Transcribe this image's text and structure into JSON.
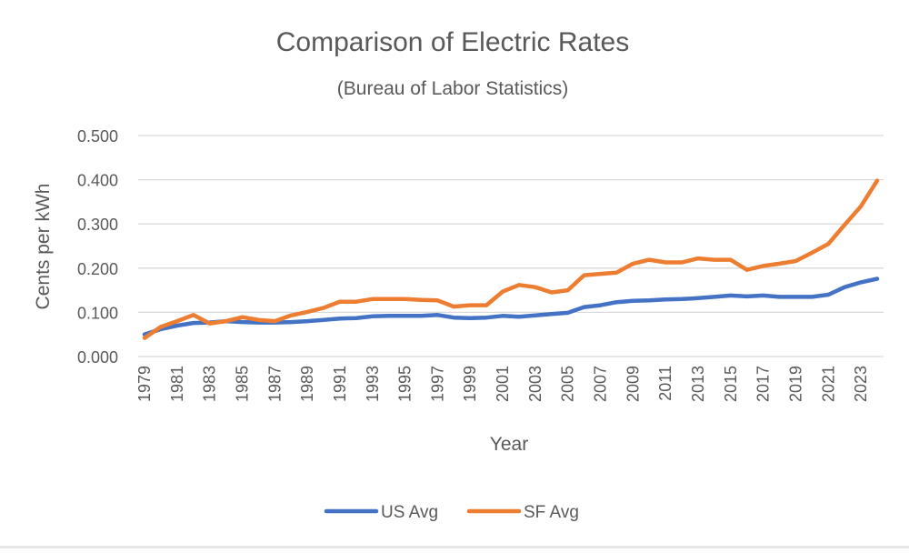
{
  "chart_data": {
    "type": "line",
    "title": "Comparison of Electric Rates",
    "subtitle": "(Bureau of Labor Statistics)",
    "xlabel": "Year",
    "ylabel": "Cents per kWh",
    "ylim": [
      0,
      0.5
    ],
    "yticks": [
      "0.000",
      "0.100",
      "0.200",
      "0.300",
      "0.400",
      "0.500"
    ],
    "xticks": [
      "1979",
      "1981",
      "1983",
      "1985",
      "1987",
      "1989",
      "1991",
      "1993",
      "1995",
      "1997",
      "1999",
      "2001",
      "2003",
      "2005",
      "2007",
      "2009",
      "2011",
      "2013",
      "2015",
      "2017",
      "2019",
      "2021",
      "2023"
    ],
    "x": [
      1979,
      1980,
      1981,
      1982,
      1983,
      1984,
      1985,
      1986,
      1987,
      1988,
      1989,
      1990,
      1991,
      1992,
      1993,
      1994,
      1995,
      1996,
      1997,
      1998,
      1999,
      2000,
      2001,
      2002,
      2003,
      2004,
      2005,
      2006,
      2007,
      2008,
      2009,
      2010,
      2011,
      2012,
      2013,
      2014,
      2015,
      2016,
      2017,
      2018,
      2019,
      2020,
      2021,
      2022,
      2023,
      2024
    ],
    "grid": true,
    "legend_position": "bottom",
    "series": [
      {
        "name": "US Avg",
        "color": "#4472C4",
        "values": [
          0.05,
          0.062,
          0.07,
          0.076,
          0.077,
          0.08,
          0.078,
          0.077,
          0.077,
          0.078,
          0.08,
          0.083,
          0.086,
          0.087,
          0.091,
          0.092,
          0.092,
          0.092,
          0.094,
          0.088,
          0.087,
          0.088,
          0.092,
          0.09,
          0.093,
          0.096,
          0.099,
          0.112,
          0.116,
          0.123,
          0.126,
          0.127,
          0.129,
          0.13,
          0.132,
          0.135,
          0.138,
          0.136,
          0.138,
          0.135,
          0.135,
          0.135,
          0.14,
          0.157,
          0.168,
          0.176
        ]
      },
      {
        "name": "SF Avg",
        "color": "#ED7D31",
        "values": [
          0.042,
          0.067,
          0.08,
          0.094,
          0.075,
          0.08,
          0.089,
          0.083,
          0.08,
          0.093,
          0.101,
          0.11,
          0.124,
          0.124,
          0.13,
          0.13,
          0.13,
          0.128,
          0.127,
          0.113,
          0.116,
          0.116,
          0.147,
          0.162,
          0.157,
          0.145,
          0.15,
          0.184,
          0.187,
          0.19,
          0.21,
          0.219,
          0.213,
          0.213,
          0.222,
          0.219,
          0.219,
          0.196,
          0.205,
          0.21,
          0.216,
          0.235,
          0.255,
          0.298,
          0.34,
          0.398
        ]
      }
    ]
  }
}
